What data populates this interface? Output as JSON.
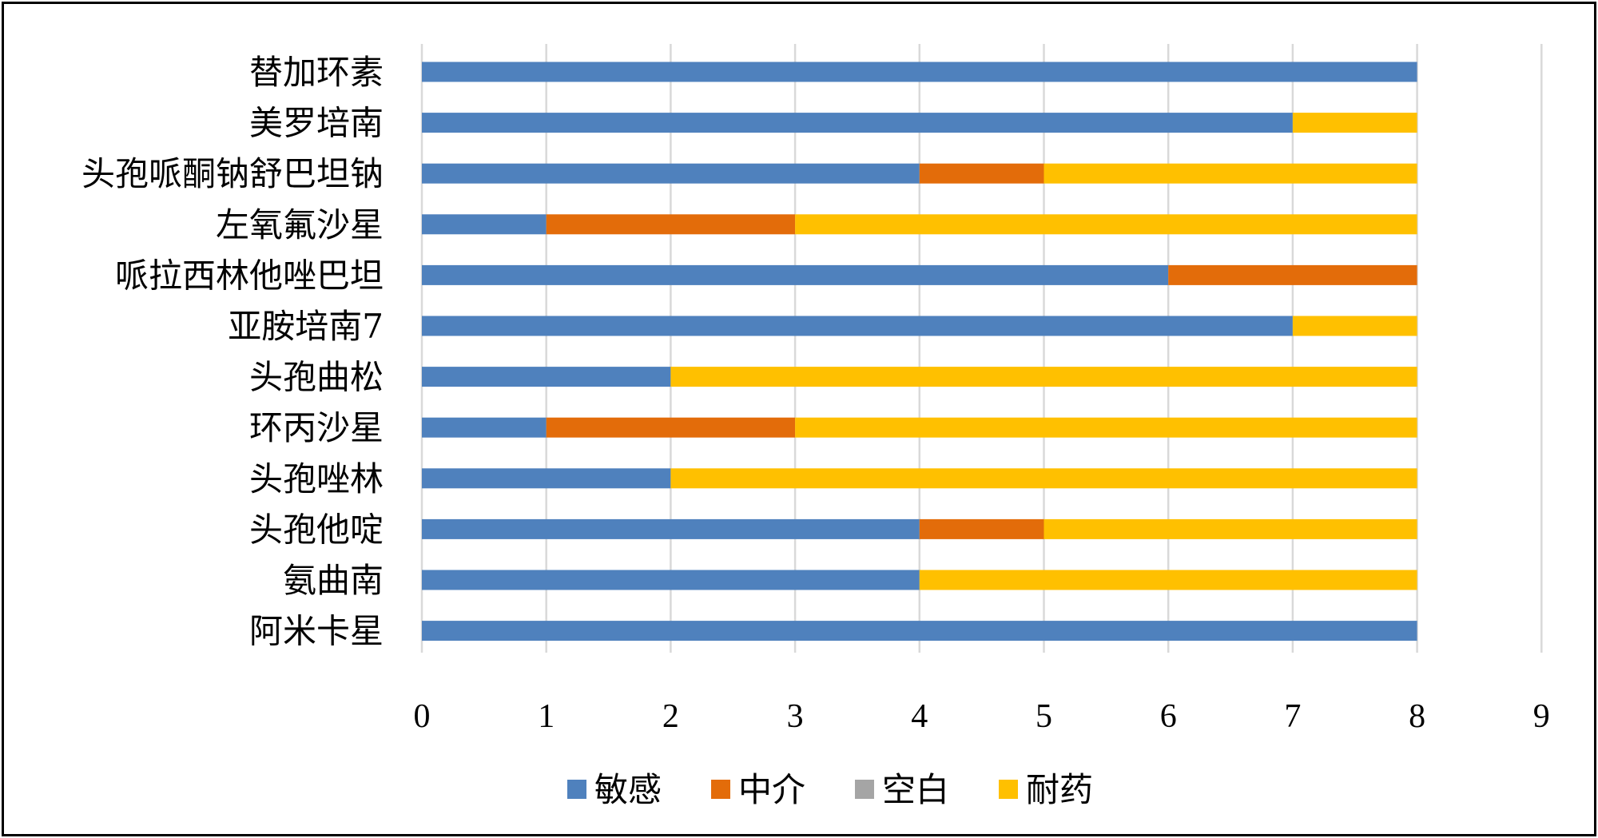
{
  "chart_data": {
    "type": "bar",
    "orientation": "horizontal",
    "stacked": true,
    "title": "",
    "xlabel": "",
    "ylabel": "",
    "xlim": [
      0,
      9
    ],
    "x_ticks": [
      "0",
      "1",
      "2",
      "3",
      "4",
      "5",
      "6",
      "7",
      "8",
      "9"
    ],
    "grid": "vertical",
    "legend_position": "bottom",
    "categories": [
      "替加环素",
      "美罗培南",
      "头孢哌酮钠舒巴坦钠",
      "左氧氟沙星",
      "哌拉西林他唑巴坦",
      "亚胺培南7",
      "头孢曲松",
      "环丙沙星",
      "头孢唑林",
      "头孢他啶",
      "氨曲南",
      "阿米卡星"
    ],
    "series": [
      {
        "name": "敏感",
        "color": "#4f81bd",
        "values": [
          8,
          7,
          4,
          1,
          6,
          7,
          2,
          1,
          2,
          4,
          4,
          8
        ]
      },
      {
        "name": "中介",
        "color": "#e36c0a",
        "values": [
          0,
          0,
          1,
          2,
          2,
          0,
          0,
          2,
          0,
          1,
          0,
          0
        ]
      },
      {
        "name": "空白",
        "color": "#a5a5a5",
        "values": [
          0,
          0,
          0,
          0,
          0,
          0,
          0,
          0,
          0,
          0,
          0,
          0
        ]
      },
      {
        "name": "耐药",
        "color": "#ffc000",
        "values": [
          0,
          1,
          3,
          5,
          0,
          1,
          6,
          5,
          6,
          3,
          4,
          0
        ]
      }
    ]
  }
}
